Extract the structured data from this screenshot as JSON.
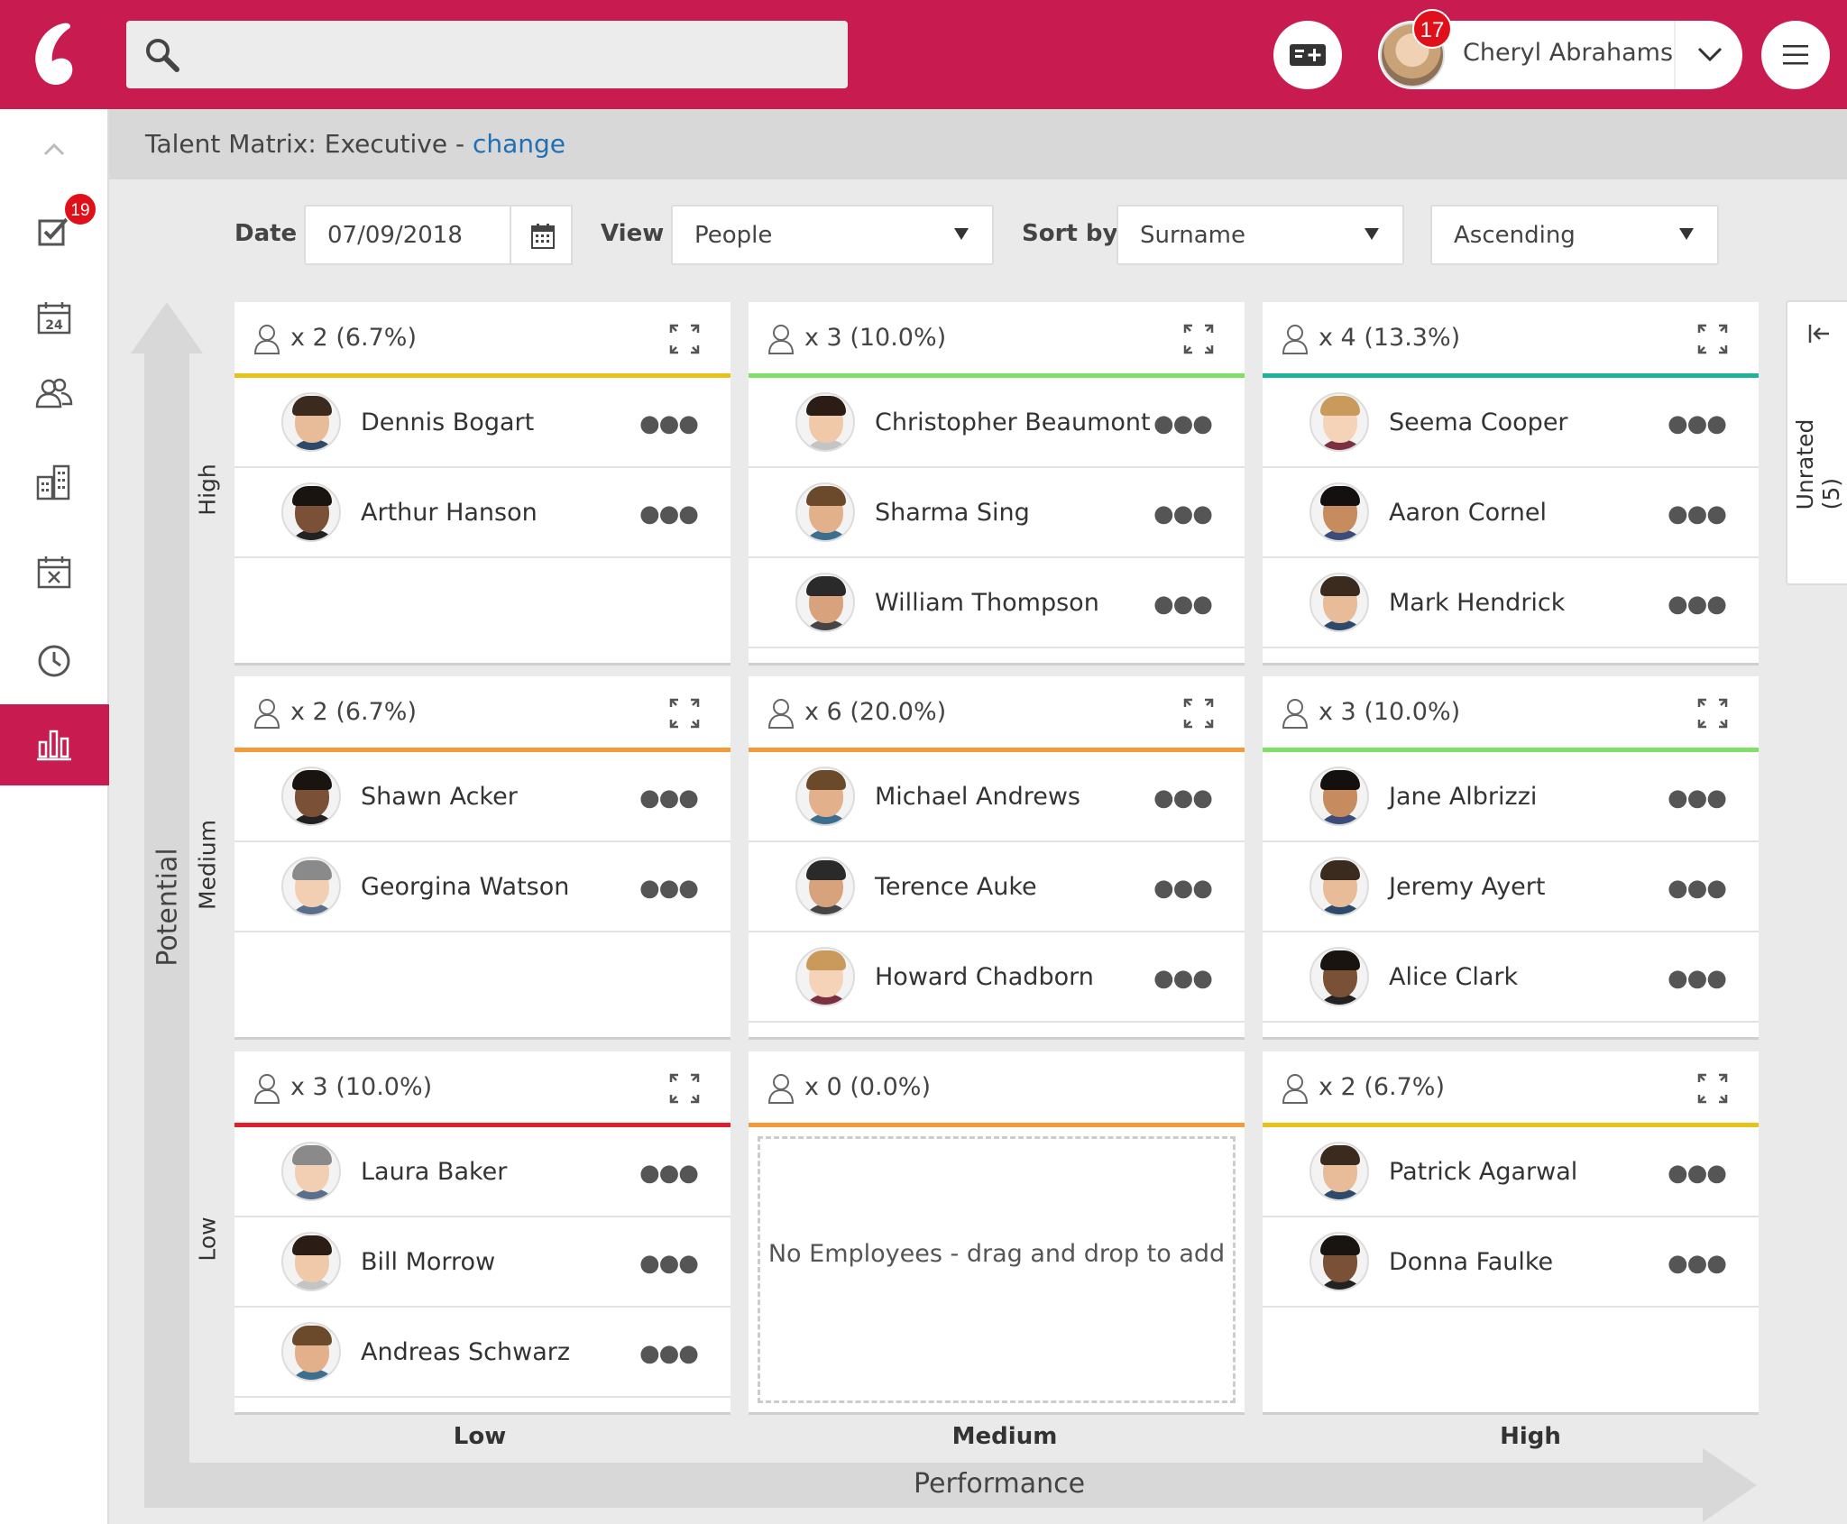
{
  "topbar": {
    "search_placeholder": "",
    "user_name": "Cheryl Abrahams",
    "notification_count": "17",
    "accent_color": "#c81b4f"
  },
  "sidebar": {
    "tasks_badge": "19",
    "items": [
      {
        "icon": "chevron-up-icon"
      },
      {
        "icon": "tasks-icon"
      },
      {
        "icon": "calendar-icon"
      },
      {
        "icon": "people-icon"
      },
      {
        "icon": "building-icon"
      },
      {
        "icon": "calendar-cancel-icon"
      },
      {
        "icon": "clock-icon"
      },
      {
        "icon": "bar-chart-icon",
        "active": true
      }
    ]
  },
  "page": {
    "title_prefix": "Talent Matrix: Executive - ",
    "title_link": "change"
  },
  "filters": {
    "date_label": "Date",
    "date_value": "07/09/2018",
    "view_label": "View",
    "view_value": "People",
    "sortby_label": "Sort by",
    "sortby_value": "Surname",
    "order_value": "Ascending"
  },
  "axes": {
    "y_title": "Potential",
    "x_title": "Performance",
    "rows": [
      "High",
      "Medium",
      "Low"
    ],
    "cols": [
      "Low",
      "Medium",
      "High"
    ]
  },
  "unrated": {
    "label": "Unrated (5)"
  },
  "cells": [
    {
      "count": "x 2 (6.7%)",
      "color": "#e8c21a",
      "people": [
        "Dennis Bogart",
        "Arthur Hanson"
      ]
    },
    {
      "count": "x 3 (10.0%)",
      "color": "#7fe065",
      "people": [
        "Christopher Beaumont",
        "Sharma Sing",
        "William Thompson"
      ]
    },
    {
      "count": "x 4 (13.3%)",
      "color": "#1fb39a",
      "people": [
        "Seema Cooper",
        "Aaron Cornel",
        "Mark Hendrick"
      ]
    },
    {
      "count": "x 2 (6.7%)",
      "color": "#f59a3a",
      "people": [
        "Shawn Acker",
        "Georgina Watson"
      ]
    },
    {
      "count": "x 6 (20.0%)",
      "color": "#f59a3a",
      "people": [
        "Michael Andrews",
        "Terence Auke",
        "Howard Chadborn"
      ]
    },
    {
      "count": "x 3 (10.0%)",
      "color": "#7fe065",
      "people": [
        "Jane Albrizzi",
        "Jeremy Ayert",
        "Alice Clark"
      ]
    },
    {
      "count": "x 3 (10.0%)",
      "color": "#e0202a",
      "people": [
        "Laura Baker",
        "Bill Morrow",
        "Andreas Schwarz"
      ]
    },
    {
      "count": "x 0 (0.0%)",
      "color": "#f59a3a",
      "people": [],
      "empty_message": "No Employees - drag and drop to add"
    },
    {
      "count": "x 2 (6.7%)",
      "color": "#e8c21a",
      "people": [
        "Patrick Agarwal",
        "Donna Faulke"
      ]
    }
  ]
}
